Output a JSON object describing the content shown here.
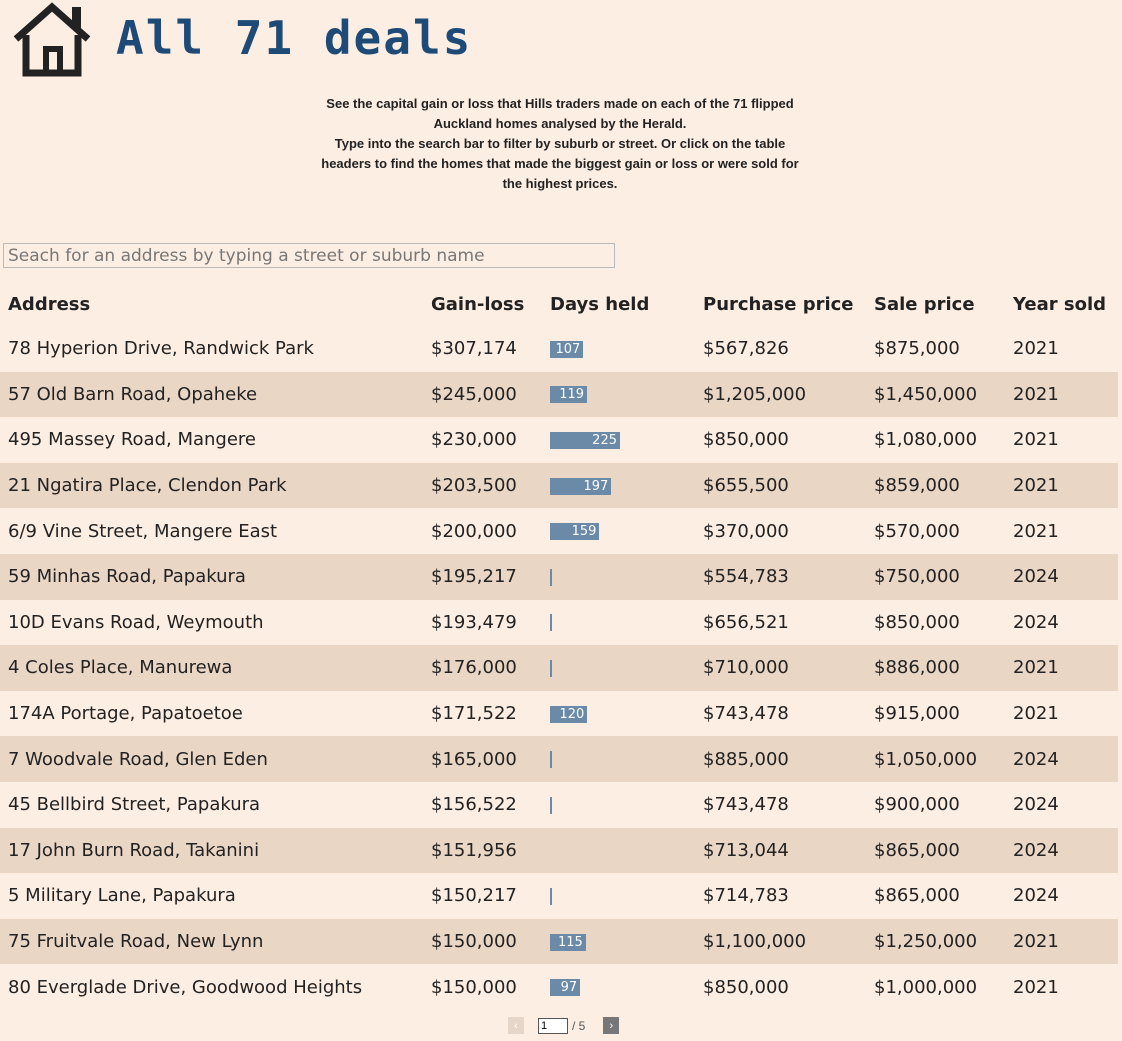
{
  "header": {
    "title": "All 71 deals",
    "icon": "house-icon"
  },
  "intro": {
    "line1": "See the capital gain or loss that Hills traders made on each of the 71 flipped Auckland homes analysed by the Herald.",
    "line2": "Type into the search bar to filter by suburb or street. Or click on the table headers to find the homes that made the biggest gain or loss or were sold for the highest prices."
  },
  "search": {
    "placeholder": "Seach for an address by typing a street or suburb name",
    "value": ""
  },
  "table": {
    "columns": [
      "Address",
      "Gain-loss",
      "Days held",
      "Purchase price",
      "Sale price",
      "Year sold"
    ],
    "bar_color": "#6a8aa8",
    "days_max": 225,
    "rows": [
      {
        "address": "78 Hyperion Drive, Randwick Park",
        "gain": "$307,174",
        "days": 107,
        "days_label": "107",
        "purchase": "$567,826",
        "sale": "$875,000",
        "year": "2021"
      },
      {
        "address": "57 Old Barn Road, Opaheke",
        "gain": "$245,000",
        "days": 119,
        "days_label": "119",
        "purchase": "$1,205,000",
        "sale": "$1,450,000",
        "year": "2021"
      },
      {
        "address": "495 Massey Road, Mangere",
        "gain": "$230,000",
        "days": 225,
        "days_label": "225",
        "purchase": "$850,000",
        "sale": "$1,080,000",
        "year": "2021"
      },
      {
        "address": "21 Ngatira Place, Clendon Park",
        "gain": "$203,500",
        "days": 197,
        "days_label": "197",
        "purchase": "$655,500",
        "sale": "$859,000",
        "year": "2021"
      },
      {
        "address": "6/9 Vine Street, Mangere East",
        "gain": "$200,000",
        "days": 159,
        "days_label": "159",
        "purchase": "$370,000",
        "sale": "$570,000",
        "year": "2021"
      },
      {
        "address": "59 Minhas Road, Papakura",
        "gain": "$195,217",
        "days": 1,
        "days_label": "",
        "purchase": "$554,783",
        "sale": "$750,000",
        "year": "2024"
      },
      {
        "address": "10D Evans Road, Weymouth",
        "gain": "$193,479",
        "days": 7,
        "days_label": "",
        "purchase": "$656,521",
        "sale": "$850,000",
        "year": "2024"
      },
      {
        "address": "4 Coles Place, Manurewa",
        "gain": "$176,000",
        "days": 7,
        "days_label": "",
        "purchase": "$710,000",
        "sale": "$886,000",
        "year": "2021"
      },
      {
        "address": "174A Portage, Papatoetoe",
        "gain": "$171,522",
        "days": 120,
        "days_label": "120",
        "purchase": "$743,478",
        "sale": "$915,000",
        "year": "2021"
      },
      {
        "address": "7 Woodvale Road, Glen Eden",
        "gain": "$165,000",
        "days": 1,
        "days_label": "",
        "purchase": "$885,000",
        "sale": "$1,050,000",
        "year": "2024"
      },
      {
        "address": "45 Bellbird Street, Papakura",
        "gain": "$156,522",
        "days": 2,
        "days_label": "",
        "purchase": "$743,478",
        "sale": "$900,000",
        "year": "2024"
      },
      {
        "address": "17 John Burn Road, Takanini",
        "gain": "$151,956",
        "days": 0,
        "days_label": "",
        "purchase": "$713,044",
        "sale": "$865,000",
        "year": "2024"
      },
      {
        "address": "5 Military Lane, Papakura",
        "gain": "$150,217",
        "days": 1,
        "days_label": "",
        "purchase": "$714,783",
        "sale": "$865,000",
        "year": "2024"
      },
      {
        "address": "75 Fruitvale Road, New Lynn",
        "gain": "$150,000",
        "days": 115,
        "days_label": "115",
        "purchase": "$1,100,000",
        "sale": "$1,250,000",
        "year": "2021"
      },
      {
        "address": "80 Everglade Drive, Goodwood Heights",
        "gain": "$150,000",
        "days": 97,
        "days_label": "97",
        "purchase": "$850,000",
        "sale": "$1,000,000",
        "year": "2021"
      }
    ]
  },
  "pager": {
    "current": "1",
    "total_label": "/ 5",
    "prev_icon": "chevron-left-icon",
    "next_icon": "chevron-right-icon"
  }
}
